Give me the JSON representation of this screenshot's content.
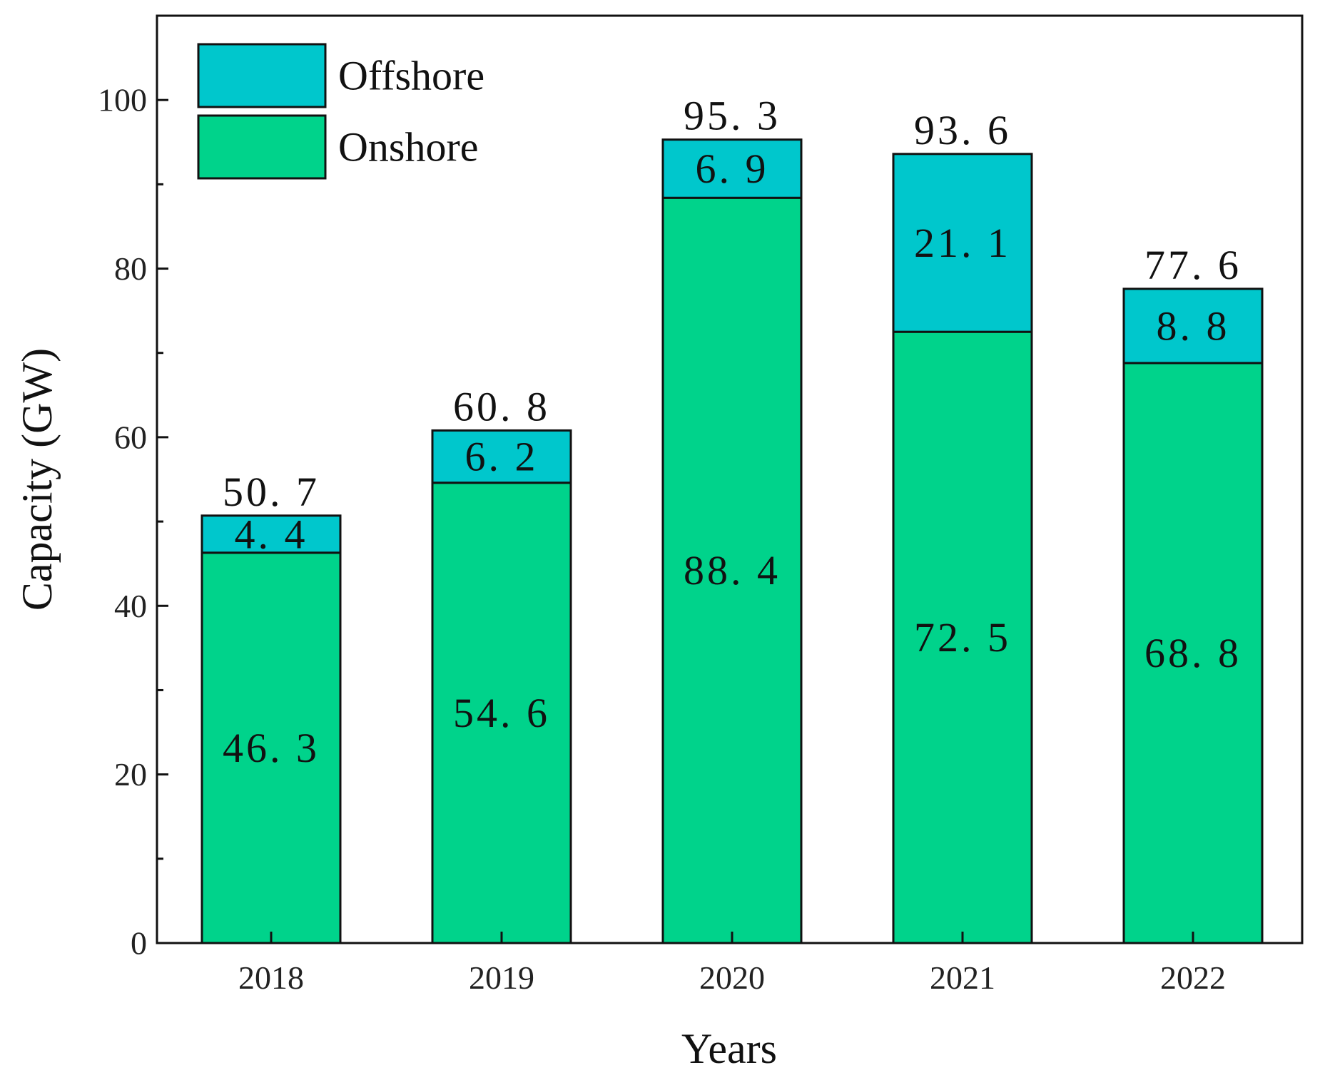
{
  "chart_data": {
    "type": "bar",
    "stacked": true,
    "categories": [
      "2018",
      "2019",
      "2020",
      "2021",
      "2022"
    ],
    "series": [
      {
        "name": "Onshore",
        "values": [
          46.3,
          54.6,
          88.4,
          72.5,
          68.8
        ],
        "color": "#00d38b"
      },
      {
        "name": "Offshore",
        "values": [
          4.4,
          6.2,
          6.9,
          21.1,
          8.8
        ],
        "color": "#00c7cc"
      }
    ],
    "totals": [
      50.7,
      60.8,
      95.3,
      93.6,
      77.6
    ],
    "segment_labels": {
      "Onshore": [
        "46. 3",
        "54. 6",
        "88. 4",
        "72. 5",
        "68. 8"
      ],
      "Offshore": [
        "4. 4",
        "6. 2",
        "6. 9",
        "21. 1",
        "8. 8"
      ]
    },
    "total_labels": [
      "50. 7",
      "60. 8",
      "95. 3",
      "93. 6",
      "77. 6"
    ],
    "legend": [
      {
        "name": "Offshore",
        "color": "#00c7cc"
      },
      {
        "name": "Onshore",
        "color": "#00d38b"
      }
    ],
    "legend_position": "top-left",
    "xlabel": "Years",
    "ylabel": "Capacity (GW)",
    "ylim": [
      0,
      110
    ],
    "yticks": [
      0,
      20,
      40,
      60,
      80,
      100
    ],
    "grid": false
  }
}
